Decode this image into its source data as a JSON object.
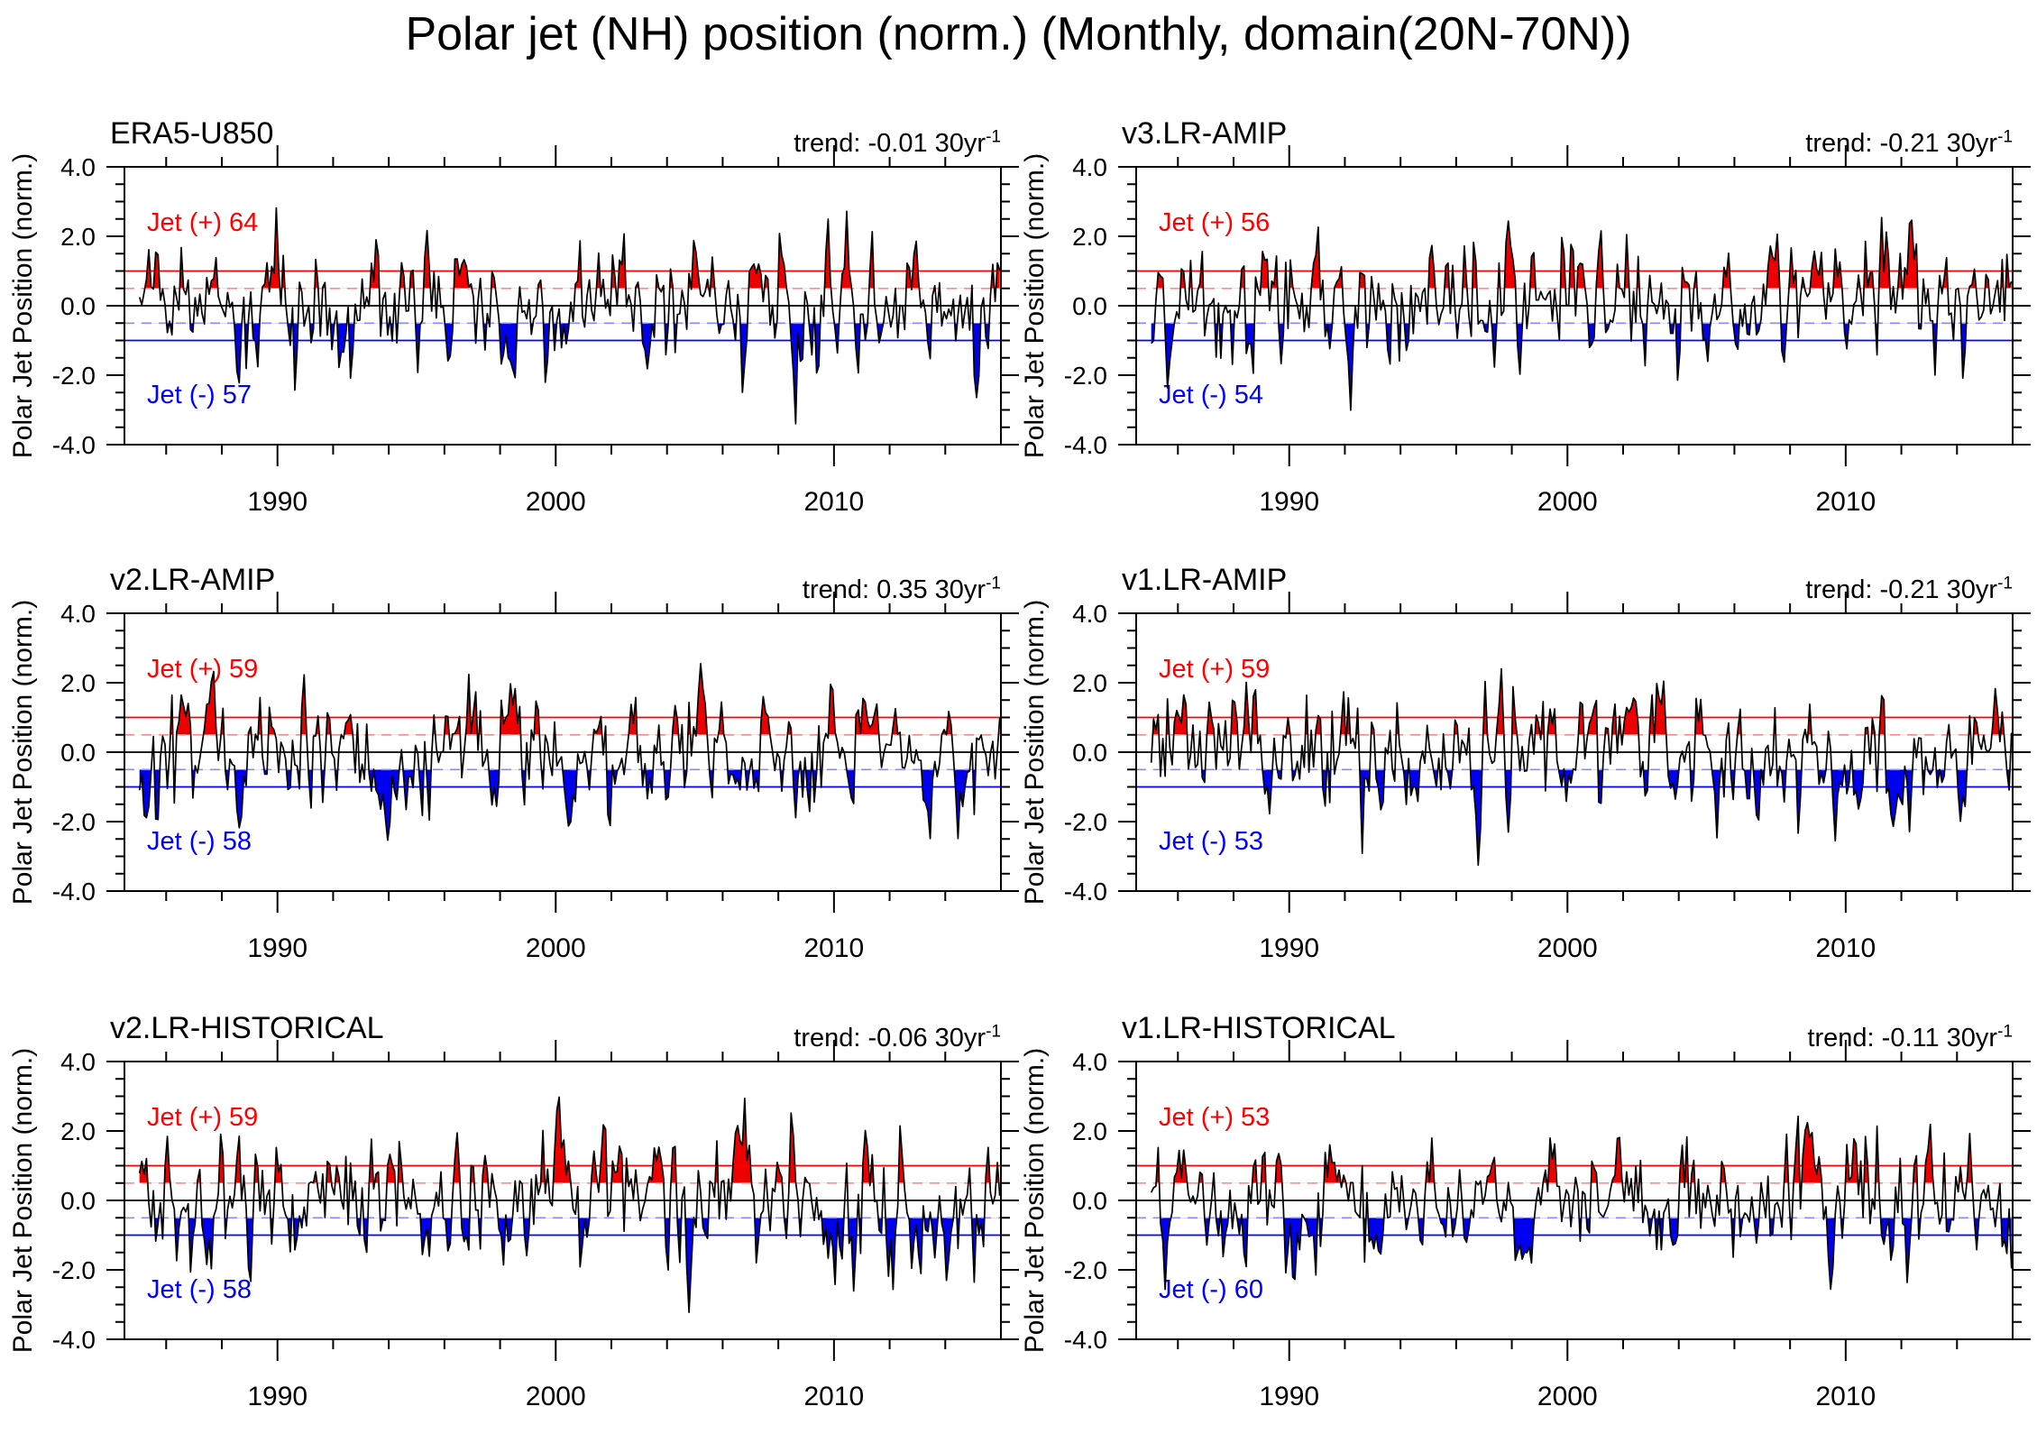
{
  "page": {
    "title": "Polar jet (NH) position (norm.) (Monthly, domain(20N-70N))",
    "background": "#ffffff"
  },
  "axes": {
    "y_label": "Polar Jet Position (norm.)",
    "x": {
      "domain": [
        1984.5,
        2016
      ],
      "major_ticks": [
        {
          "year": 1990,
          "label": "1990"
        },
        {
          "year": 2000,
          "label": "2000"
        },
        {
          "year": 2010,
          "label": "2010"
        }
      ],
      "minor_tick_years": [
        1986,
        1988,
        1992,
        1994,
        1996,
        1998,
        2002,
        2004,
        2006,
        2008,
        2012,
        2014
      ]
    },
    "y": {
      "domain": [
        -4,
        4
      ],
      "major_ticks": [
        {
          "value": 4,
          "label": "4.0"
        },
        {
          "value": 2,
          "label": "2.0"
        },
        {
          "value": 0,
          "label": "0.0"
        },
        {
          "value": -2,
          "label": "-2.0"
        },
        {
          "value": -4,
          "label": "-4.0"
        }
      ],
      "minor_tick_values": [
        3.5,
        3,
        2.5,
        1.5,
        1,
        0.5,
        -0.5,
        -1,
        -1.5,
        -2.5,
        -3,
        -3.5
      ]
    },
    "ref_lines": [
      {
        "y": 1.0,
        "color": "#ff0000",
        "style": "solid"
      },
      {
        "y": 0.5,
        "color": "#ff8a8a",
        "style": "dashed"
      },
      {
        "y": 0.0,
        "color": "#000000",
        "style": "solid"
      },
      {
        "y": -0.5,
        "color": "#8a8aff",
        "style": "dashed"
      },
      {
        "y": -1.0,
        "color": "#0000ff",
        "style": "solid"
      }
    ],
    "fill_above": {
      "threshold": 0.5,
      "color": "#ee0000"
    },
    "fill_below": {
      "threshold": -0.5,
      "color": "#0000ee"
    },
    "grid": false,
    "legend": "none"
  },
  "chart_data": [
    {
      "type": "line",
      "title": "ERA5-U850",
      "trend": {
        "label": "trend:",
        "value": "-0.01",
        "unit": "30yr",
        "exp": "-1"
      },
      "jet_positive": {
        "label": "Jet (+) 64",
        "count": 64,
        "color": "#ff0000"
      },
      "jet_negative": {
        "label": "Jet (-) 57",
        "count": 57,
        "color": "#0000ff"
      },
      "xlabel": "",
      "ylabel": "Polar Jet Position (norm.)",
      "x_range": [
        1985.0,
        2015.96
      ],
      "ylim": [
        -4.0,
        4.0
      ],
      "series_gen": {
        "seed": 19850117,
        "phi": 0.5,
        "sigma": 0.85,
        "n": 372,
        "x_start": 1985,
        "dt_years": 0.0833333
      }
    },
    {
      "type": "line",
      "title": "v3.LR-AMIP",
      "trend": {
        "label": "trend:",
        "value": "-0.21",
        "unit": "30yr",
        "exp": "-1"
      },
      "jet_positive": {
        "label": "Jet (+) 56",
        "count": 56,
        "color": "#ff0000"
      },
      "jet_negative": {
        "label": "Jet (-) 54",
        "count": 54,
        "color": "#0000ff"
      },
      "xlabel": "",
      "ylabel": "Polar Jet Position (norm.)",
      "x_range": [
        1985.0,
        2015.96
      ],
      "ylim": [
        -4.0,
        4.0
      ],
      "series_gen": {
        "seed": 30077121,
        "phi": 0.5,
        "sigma": 0.85,
        "n": 372,
        "x_start": 1985,
        "dt_years": 0.0833333
      }
    },
    {
      "type": "line",
      "title": "v2.LR-AMIP",
      "trend": {
        "label": "trend:",
        "value": "0.35",
        "unit": "30yr",
        "exp": "-1"
      },
      "jet_positive": {
        "label": "Jet (+) 59",
        "count": 59,
        "color": "#ff0000"
      },
      "jet_negative": {
        "label": "Jet (-) 58",
        "count": 58,
        "color": "#0000ff"
      },
      "xlabel": "",
      "ylabel": "Polar Jet Position (norm.)",
      "x_range": [
        1985.0,
        2015.96
      ],
      "ylim": [
        -4.0,
        4.0
      ],
      "series_gen": {
        "seed": 20449331,
        "phi": 0.5,
        "sigma": 0.85,
        "n": 372,
        "x_start": 1985,
        "dt_years": 0.0833333
      }
    },
    {
      "type": "line",
      "title": "v1.LR-AMIP",
      "trend": {
        "label": "trend:",
        "value": "-0.21",
        "unit": "30yr",
        "exp": "-1"
      },
      "jet_positive": {
        "label": "Jet (+) 59",
        "count": 59,
        "color": "#ff0000"
      },
      "jet_negative": {
        "label": "Jet (-) 53",
        "count": 53,
        "color": "#0000ff"
      },
      "xlabel": "",
      "ylabel": "Polar Jet Position (norm.)",
      "x_range": [
        1985.0,
        2015.96
      ],
      "ylim": [
        -4.0,
        4.0
      ],
      "series_gen": {
        "seed": 10938477,
        "phi": 0.5,
        "sigma": 0.85,
        "n": 372,
        "x_start": 1985,
        "dt_years": 0.0833333
      }
    },
    {
      "type": "line",
      "title": "v2.LR-HISTORICAL",
      "trend": {
        "label": "trend:",
        "value": "-0.06",
        "unit": "30yr",
        "exp": "-1"
      },
      "jet_positive": {
        "label": "Jet (+) 59",
        "count": 59,
        "color": "#ff0000"
      },
      "jet_negative": {
        "label": "Jet (-) 58",
        "count": 58,
        "color": "#0000ff"
      },
      "xlabel": "",
      "ylabel": "Polar Jet Position (norm.)",
      "x_range": [
        1985.0,
        2015.96
      ],
      "ylim": [
        -4.0,
        4.0
      ],
      "series_gen": {
        "seed": 27713091,
        "phi": 0.5,
        "sigma": 0.85,
        "n": 372,
        "x_start": 1985,
        "dt_years": 0.0833333
      }
    },
    {
      "type": "line",
      "title": "v1.LR-HISTORICAL",
      "trend": {
        "label": "trend:",
        "value": "-0.11",
        "unit": "30yr",
        "exp": "-1"
      },
      "jet_positive": {
        "label": "Jet (+) 53",
        "count": 53,
        "color": "#ff0000"
      },
      "jet_negative": {
        "label": "Jet (-) 60",
        "count": 60,
        "color": "#0000ff"
      },
      "xlabel": "",
      "ylabel": "Polar Jet Position (norm.)",
      "x_range": [
        1985.0,
        2015.96
      ],
      "ylim": [
        -4.0,
        4.0
      ],
      "series_gen": {
        "seed": 16606841,
        "phi": 0.5,
        "sigma": 0.85,
        "n": 372,
        "x_start": 1985,
        "dt_years": 0.0833333
      }
    }
  ],
  "panel_layout": {
    "columns": 2,
    "rows": 3,
    "col_lefts": [
      0,
      1122
    ],
    "row_tops": [
      85,
      580,
      1077
    ]
  }
}
